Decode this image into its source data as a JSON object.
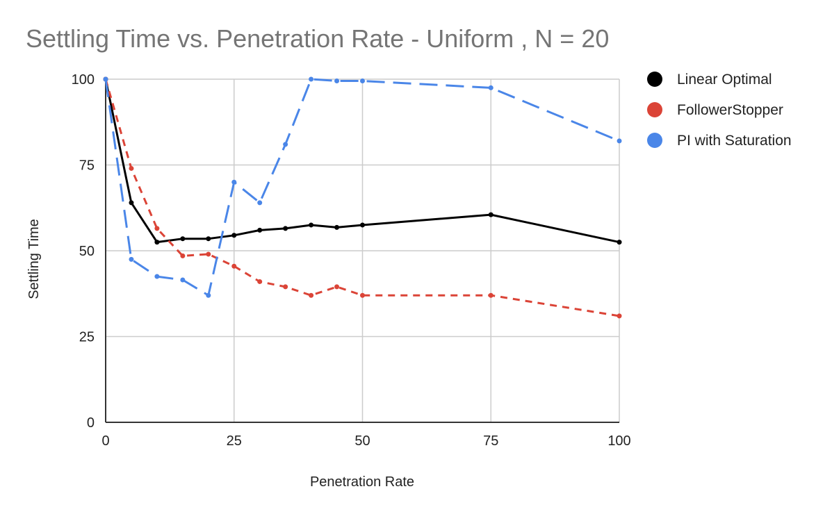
{
  "chart_data": {
    "type": "line",
    "title": "Settling Time vs. Penetration Rate - Uniform , N = 20",
    "xlabel": "Penetration Rate",
    "ylabel": "Settling Time",
    "xlim": [
      0,
      100
    ],
    "ylim": [
      0,
      100
    ],
    "xticks": [
      0,
      25,
      50,
      75,
      100
    ],
    "yticks": [
      0,
      25,
      50,
      75,
      100
    ],
    "grid": true,
    "legend_position": "right",
    "series": [
      {
        "name": "Linear Optimal",
        "color": "#000000",
        "style": "solid",
        "x": [
          0,
          5,
          10,
          15,
          20,
          25,
          30,
          35,
          40,
          45,
          50,
          75,
          100
        ],
        "y": [
          100,
          64,
          52.5,
          53.5,
          53.5,
          54.5,
          56,
          56.5,
          57.5,
          56.8,
          57.5,
          60.5,
          52.5
        ]
      },
      {
        "name": "FollowerStopper",
        "color": "#DB4437",
        "style": "dash-short",
        "x": [
          0,
          5,
          10,
          15,
          20,
          25,
          30,
          35,
          40,
          45,
          50,
          75,
          100
        ],
        "y": [
          100,
          74,
          56.5,
          48.5,
          49,
          45.5,
          41,
          39.5,
          37,
          39.5,
          37,
          37,
          31
        ]
      },
      {
        "name": "PI with Saturation",
        "color": "#4A86E8",
        "style": "dash-long",
        "x": [
          0,
          5,
          10,
          15,
          20,
          25,
          30,
          35,
          40,
          45,
          50,
          75,
          100
        ],
        "y": [
          100,
          47.5,
          42.5,
          41.5,
          37,
          70,
          64,
          81,
          100,
          99.5,
          99.5,
          97.5,
          82
        ]
      }
    ]
  }
}
